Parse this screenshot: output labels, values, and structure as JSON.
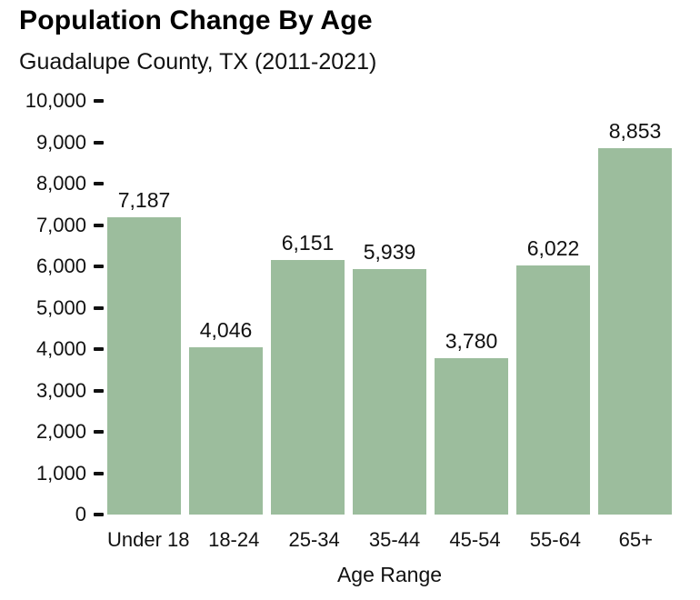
{
  "header": {
    "title": "Population Change By Age",
    "subtitle": "Guadalupe County, TX (2011-2021)"
  },
  "chart_data": {
    "type": "bar",
    "title": "Population Change By Age",
    "subtitle": "Guadalupe County, TX (2011-2021)",
    "categories": [
      "Under 18",
      "18-24",
      "25-34",
      "35-44",
      "45-54",
      "55-64",
      "65+"
    ],
    "values": [
      7187,
      4046,
      6151,
      5939,
      3780,
      6022,
      8853
    ],
    "value_labels": [
      "7,187",
      "4,046",
      "6,151",
      "5,939",
      "3,780",
      "6,022",
      "8,853"
    ],
    "xlabel": "Age Range",
    "ylabel": "",
    "ylim": [
      0,
      10000
    ],
    "ytick_interval": 1000,
    "ytick_labels": [
      "0",
      "1,000",
      "2,000",
      "3,000",
      "4,000",
      "5,000",
      "6,000",
      "7,000",
      "8,000",
      "9,000",
      "10,000"
    ],
    "grid": false,
    "legend": false,
    "bar_color": "#9cbd9d",
    "text_color": "#111111",
    "background_color": "#ffffff"
  }
}
